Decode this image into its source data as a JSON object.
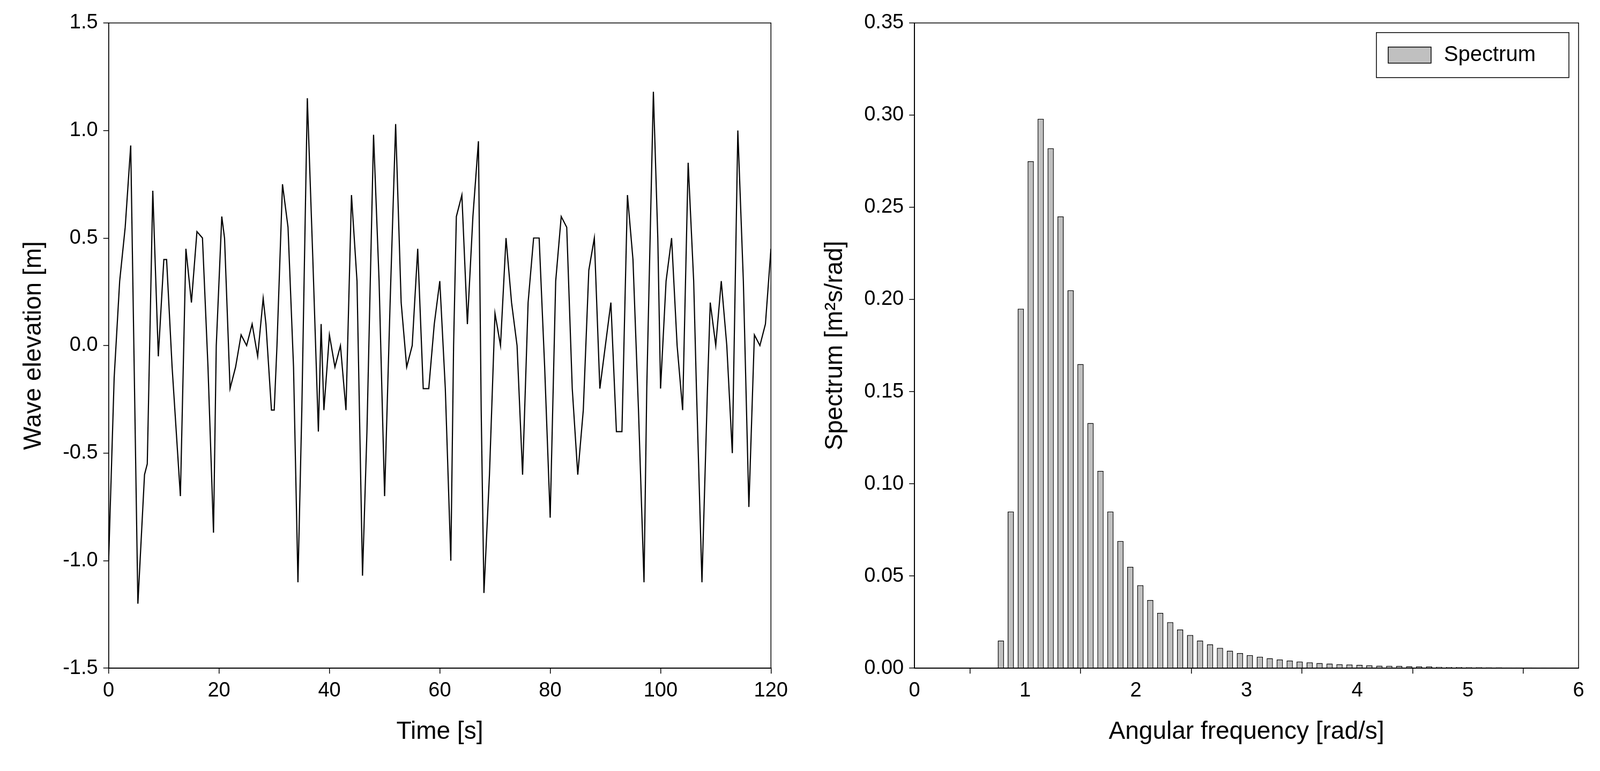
{
  "chart_data": [
    {
      "type": "line",
      "xlabel": "Time [s]",
      "ylabel": "Wave elevation [m]",
      "x": [
        0,
        1,
        2,
        3,
        4,
        5.3,
        6.5,
        7,
        8,
        9,
        10,
        10.5,
        11.5,
        13,
        14,
        15,
        16,
        17,
        18,
        19,
        19.5,
        20.5,
        21,
        22,
        23,
        24,
        25,
        26,
        27,
        28,
        28.5,
        29.5,
        30,
        30.5,
        31.5,
        32.5,
        33.5,
        34.3,
        35,
        36,
        37,
        38,
        38.5,
        39,
        40,
        41,
        42,
        43,
        44,
        45,
        46,
        46.8,
        48,
        49,
        50,
        51,
        52,
        53,
        54,
        55,
        56,
        57,
        58,
        59,
        60,
        61,
        62,
        62.5,
        63,
        64,
        65,
        66,
        67,
        67.5,
        68,
        69,
        70,
        71,
        72,
        73,
        74,
        75,
        76,
        77,
        78,
        79,
        80,
        81,
        82,
        83,
        84,
        85,
        86,
        87,
        88,
        89,
        90,
        91,
        92,
        93,
        94,
        95,
        96,
        97,
        97.5,
        98.7,
        99.5,
        100,
        101,
        102,
        103,
        104,
        105,
        106,
        106.5,
        107.5,
        108.5,
        109,
        110,
        111,
        112,
        113,
        114,
        115,
        116,
        117,
        118,
        119,
        120
      ],
      "values": [
        -1.0,
        -0.15,
        0.3,
        0.55,
        0.93,
        -1.2,
        -0.6,
        -0.55,
        0.72,
        -0.05,
        0.4,
        0.4,
        -0.1,
        -0.7,
        0.45,
        0.2,
        0.53,
        0.5,
        -0.1,
        -0.87,
        0.0,
        0.6,
        0.5,
        -0.2,
        -0.1,
        0.05,
        0.0,
        0.1,
        -0.05,
        0.22,
        0.1,
        -0.3,
        -0.3,
        0.0,
        0.75,
        0.55,
        -0.1,
        -1.1,
        -0.3,
        1.15,
        0.4,
        -0.4,
        0.1,
        -0.3,
        0.05,
        -0.1,
        0.0,
        -0.3,
        0.7,
        0.3,
        -1.07,
        -0.4,
        0.98,
        0.3,
        -0.7,
        0.2,
        1.03,
        0.2,
        -0.1,
        0.0,
        0.45,
        -0.2,
        -0.2,
        0.1,
        0.3,
        -0.2,
        -1.0,
        0.0,
        0.6,
        0.7,
        0.1,
        0.6,
        0.95,
        -0.3,
        -1.15,
        -0.6,
        0.15,
        0.0,
        0.5,
        0.2,
        0.0,
        -0.6,
        0.2,
        0.5,
        0.5,
        -0.1,
        -0.8,
        0.3,
        0.6,
        0.55,
        -0.2,
        -0.6,
        -0.3,
        0.35,
        0.5,
        -0.2,
        0.0,
        0.2,
        -0.4,
        -0.4,
        0.7,
        0.4,
        -0.3,
        -1.1,
        -0.2,
        1.18,
        0.5,
        -0.2,
        0.3,
        0.5,
        0.0,
        -0.3,
        0.85,
        0.3,
        -0.2,
        -1.1,
        -0.2,
        0.2,
        0.0,
        0.3,
        0.0,
        -0.5,
        1.0,
        0.3,
        -0.75,
        0.05,
        0.0,
        0.1,
        0.45
      ],
      "color": "#000000",
      "xlim": [
        0,
        120
      ],
      "xticks": [
        0,
        20,
        40,
        60,
        80,
        100,
        120
      ],
      "ylim": [
        -1.5,
        1.5
      ],
      "yticks": [
        -1.5,
        {
          "value": -1.0,
          "label": "-1.0"
        },
        -0.5,
        {
          "value": 0,
          "label": "0.0"
        },
        0.5,
        {
          "value": 1.0,
          "label": "1.0"
        },
        1.5
      ],
      "grid": false
    },
    {
      "type": "bar",
      "xlabel": "Angular frequency [rad/s]",
      "ylabel": "Spectrum [m²s/rad]",
      "x": [
        0.78,
        0.87,
        0.96,
        1.05,
        1.14,
        1.23,
        1.32,
        1.41,
        1.5,
        1.59,
        1.68,
        1.77,
        1.86,
        1.95,
        2.04,
        2.13,
        2.22,
        2.31,
        2.4,
        2.49,
        2.58,
        2.67,
        2.76,
        2.85,
        2.94,
        3.03,
        3.12,
        3.21,
        3.3,
        3.39,
        3.48,
        3.57,
        3.66,
        3.75,
        3.84,
        3.93,
        4.02,
        4.11,
        4.2,
        4.29,
        4.38,
        4.47,
        4.56,
        4.65,
        4.74,
        4.83,
        4.92,
        5.01,
        5.1,
        5.19,
        5.28,
        5.37,
        5.46,
        5.55,
        5.64,
        5.73,
        5.82,
        5.91
      ],
      "series": [
        {
          "name": "Spectrum",
          "color": "#c0c0c0",
          "values": [
            0.015,
            0.085,
            0.195,
            0.275,
            0.298,
            0.282,
            0.245,
            0.205,
            0.165,
            0.133,
            0.107,
            0.085,
            0.069,
            0.055,
            0.045,
            0.037,
            0.03,
            0.025,
            0.021,
            0.018,
            0.015,
            0.013,
            0.011,
            0.0095,
            0.0082,
            0.0071,
            0.0062,
            0.0054,
            0.0047,
            0.0041,
            0.0036,
            0.0032,
            0.0028,
            0.0025,
            0.0022,
            0.002,
            0.0018,
            0.0016,
            0.0014,
            0.0013,
            0.0012,
            0.0011,
            0.001,
            0.0009,
            0.0008,
            0.0007,
            0.0007,
            0.0006,
            0.0006,
            0.0005,
            0.0005,
            0.0004,
            0.0004,
            0.0004,
            0.0003,
            0.0003,
            0.0003,
            0.0003
          ]
        }
      ],
      "xlim": [
        0,
        6
      ],
      "xticks": [
        0,
        1,
        2,
        3,
        4,
        5,
        6
      ],
      "ylim": [
        0,
        0.35
      ],
      "yticks": [
        {
          "value": 0,
          "label": "0.00"
        },
        0.05,
        {
          "value": 0.1,
          "label": "0.10"
        },
        0.15,
        {
          "value": 0.2,
          "label": "0.20"
        },
        0.25,
        {
          "value": 0.3,
          "label": "0.30"
        },
        0.35
      ],
      "legend": "upper right",
      "grid": false
    }
  ]
}
